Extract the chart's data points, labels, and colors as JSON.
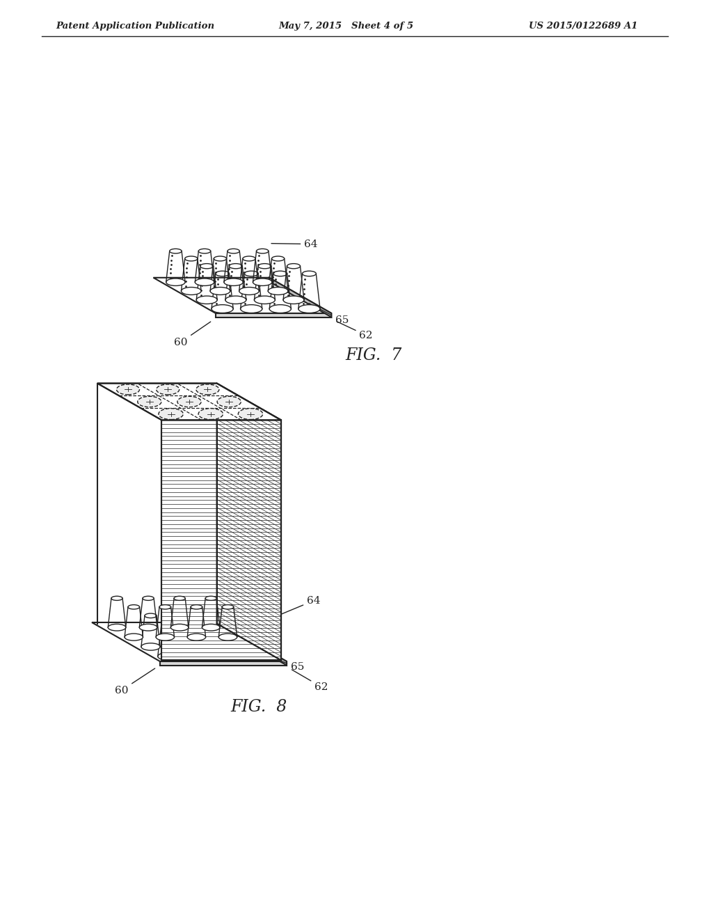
{
  "header_left": "Patent Application Publication",
  "header_mid": "May 7, 2015   Sheet 4 of 5",
  "header_right": "US 2015/0122689 A1",
  "fig7_label": "FIG.  7",
  "fig8_label": "FIG.  8",
  "bg_color": "#ffffff",
  "line_color": "#222222"
}
